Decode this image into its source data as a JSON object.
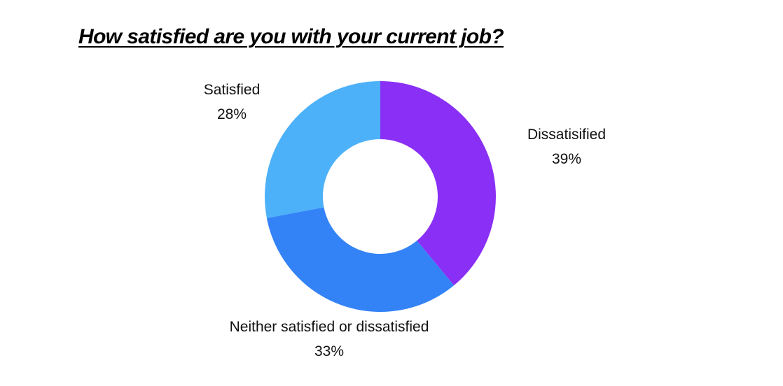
{
  "chart_data": {
    "type": "pie",
    "title": "How satisfied are you with your current job?",
    "donut": true,
    "slices": [
      {
        "label": "Dissatisified",
        "value": 39,
        "display": "39%",
        "color": "#8a2ff5"
      },
      {
        "label": "Neither satisfied or dissatisfied",
        "value": 33,
        "display": "33%",
        "color": "#3383f7"
      },
      {
        "label": "Satisfied",
        "value": 28,
        "display": "28%",
        "color": "#4cb1f9"
      }
    ],
    "legend": "none"
  }
}
